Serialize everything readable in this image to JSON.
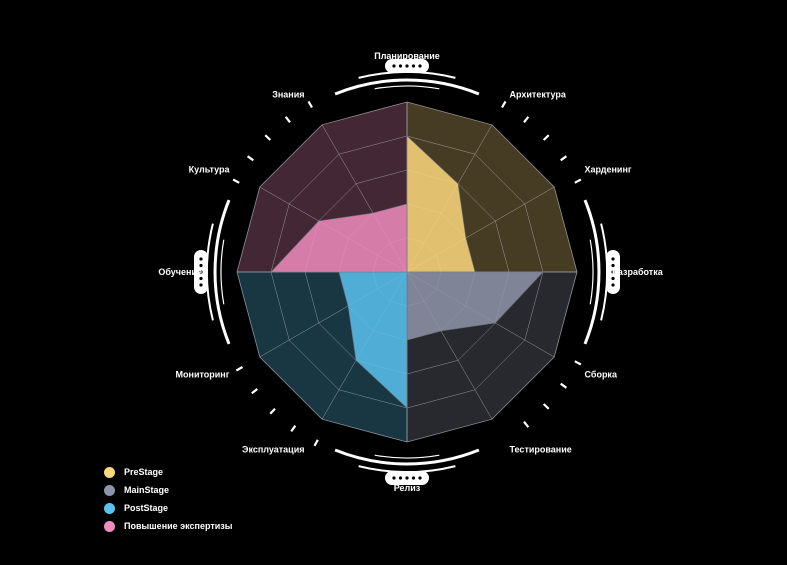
{
  "chart_data": {
    "type": "radar",
    "title": "",
    "axes": [
      "Планирование",
      "Архитектура",
      "Харденинг",
      "Разработка",
      "Сборка",
      "Тестирование",
      "Релиз",
      "Эксплуатация",
      "Мониторинг",
      "Обучение",
      "Культура",
      "Знания"
    ],
    "levels": 5,
    "max": 5,
    "series": [
      {
        "name": "PreStage",
        "color": "#fdd77d",
        "axes": [
          "Планирование",
          "Архитектура",
          "Харденинг",
          "Разработка"
        ],
        "values": [
          4,
          3,
          2,
          2
        ]
      },
      {
        "name": "MainStage",
        "color": "#8e95a8",
        "axes": [
          "Разработка",
          "Сборка",
          "Тестирование",
          "Релиз"
        ],
        "values": [
          4,
          3,
          2,
          2
        ]
      },
      {
        "name": "PostStage",
        "color": "#5bc2ef",
        "axes": [
          "Релиз",
          "Эксплуатация",
          "Мониторинг",
          "Обучение"
        ],
        "values": [
          4,
          3,
          2,
          2
        ]
      },
      {
        "name": "Повышение экспертизы",
        "color": "#f08cbd",
        "axes": [
          "Обучение",
          "Культура",
          "Знания",
          "Планирование"
        ],
        "values": [
          4,
          3,
          2,
          2
        ]
      }
    ],
    "legend_position": "bottom-left",
    "grid": true
  }
}
